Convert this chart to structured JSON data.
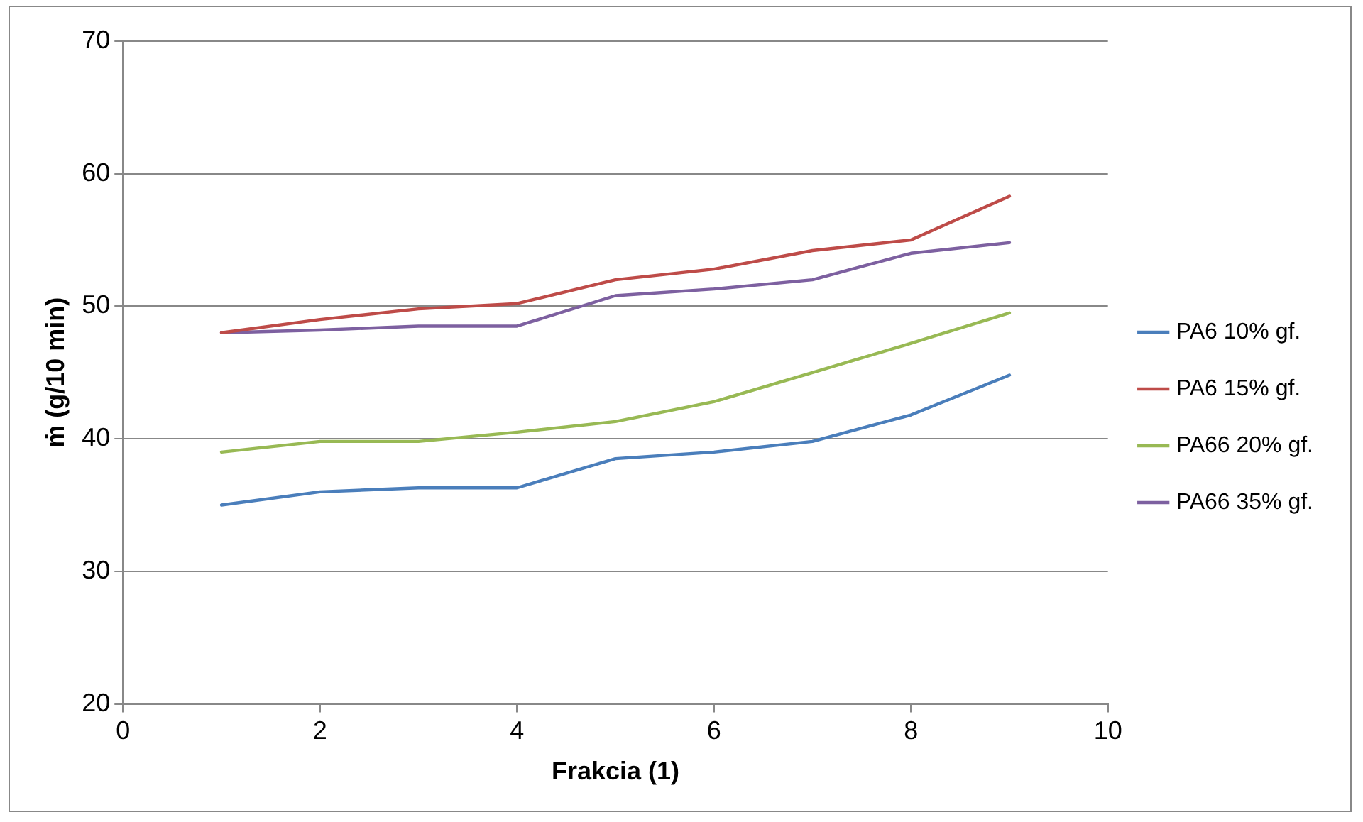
{
  "chart_data": {
    "type": "line",
    "xlabel": "Frakcia (1)",
    "ylabel": "ṁ (g/10 min)",
    "x": [
      1,
      2,
      3,
      4,
      5,
      6,
      7,
      8,
      9
    ],
    "series": [
      {
        "name": "PA6 10% gf.",
        "color": "#4a7ebb",
        "values": [
          35.0,
          36.0,
          36.3,
          36.3,
          38.5,
          39.0,
          39.8,
          41.8,
          44.8
        ]
      },
      {
        "name": "PA6 15% gf.",
        "color": "#be4b48",
        "values": [
          48.0,
          49.0,
          49.8,
          50.2,
          52.0,
          52.8,
          54.2,
          55.0,
          58.3
        ]
      },
      {
        "name": "PA66 20% gf.",
        "color": "#98b954",
        "values": [
          39.0,
          39.8,
          39.8,
          40.5,
          41.3,
          42.8,
          45.0,
          47.2,
          49.5
        ]
      },
      {
        "name": "PA66 35% gf.",
        "color": "#7d60a0",
        "values": [
          48.0,
          48.2,
          48.5,
          48.5,
          50.8,
          51.3,
          52.0,
          54.0,
          54.8
        ]
      }
    ],
    "xlim": [
      0,
      10
    ],
    "xticks": [
      0,
      2,
      4,
      6,
      8,
      10
    ],
    "ylim": [
      20,
      70
    ],
    "yticks": [
      20,
      30,
      40,
      50,
      60,
      70
    ],
    "grid": "y",
    "legend": "right",
    "marker": "none",
    "line_style": "solid"
  }
}
